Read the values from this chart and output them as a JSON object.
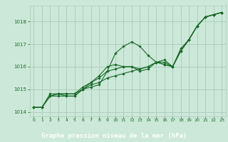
{
  "title": "Graphe pression niveau de la mer (hPa)",
  "plot_bg_color": "#cce8d8",
  "fig_bg_color": "#cce8d8",
  "label_bg_color": "#1a6b2a",
  "label_text_color": "#ffffff",
  "grid_color": "#aaccbb",
  "line_color": "#1a6b2a",
  "marker_color": "#1a6b2a",
  "xlim": [
    -0.5,
    23.5
  ],
  "ylim": [
    1013.8,
    1018.7
  ],
  "yticks": [
    1014,
    1015,
    1016,
    1017,
    1018
  ],
  "xticks": [
    0,
    1,
    2,
    3,
    4,
    5,
    6,
    7,
    8,
    9,
    10,
    11,
    12,
    13,
    14,
    15,
    16,
    17,
    18,
    19,
    20,
    21,
    22,
    23
  ],
  "series": [
    [
      1014.2,
      1014.2,
      1014.7,
      1014.7,
      1014.7,
      1014.7,
      1015.0,
      1015.1,
      1015.2,
      1015.8,
      1016.6,
      1016.9,
      1017.1,
      1016.9,
      1016.5,
      1016.2,
      1016.1,
      1016.0,
      1016.8,
      1017.2,
      1017.8,
      1018.2,
      1018.3,
      1018.4
    ],
    [
      1014.2,
      1014.2,
      1014.7,
      1014.8,
      1014.7,
      1014.7,
      1015.0,
      1015.3,
      1015.5,
      1015.8,
      1015.9,
      1016.0,
      1016.0,
      1015.8,
      1015.9,
      1016.2,
      1016.1,
      1016.0,
      1016.7,
      1017.2,
      1017.8,
      1018.2,
      1018.3,
      1018.4
    ],
    [
      1014.2,
      1014.2,
      1014.8,
      1014.8,
      1014.8,
      1014.8,
      1015.1,
      1015.3,
      1015.6,
      1016.0,
      1016.1,
      1016.0,
      1016.0,
      1015.9,
      1016.0,
      1016.2,
      1016.2,
      1016.0,
      1016.7,
      1017.2,
      1017.8,
      1018.2,
      1018.3,
      1018.4
    ],
    [
      1014.2,
      1014.2,
      1014.7,
      1014.8,
      1014.8,
      1014.8,
      1015.0,
      1015.2,
      1015.3,
      1015.5,
      1015.6,
      1015.7,
      1015.8,
      1015.9,
      1016.0,
      1016.2,
      1016.3,
      1016.0,
      1016.7,
      1017.2,
      1017.8,
      1018.2,
      1018.3,
      1018.4
    ]
  ]
}
